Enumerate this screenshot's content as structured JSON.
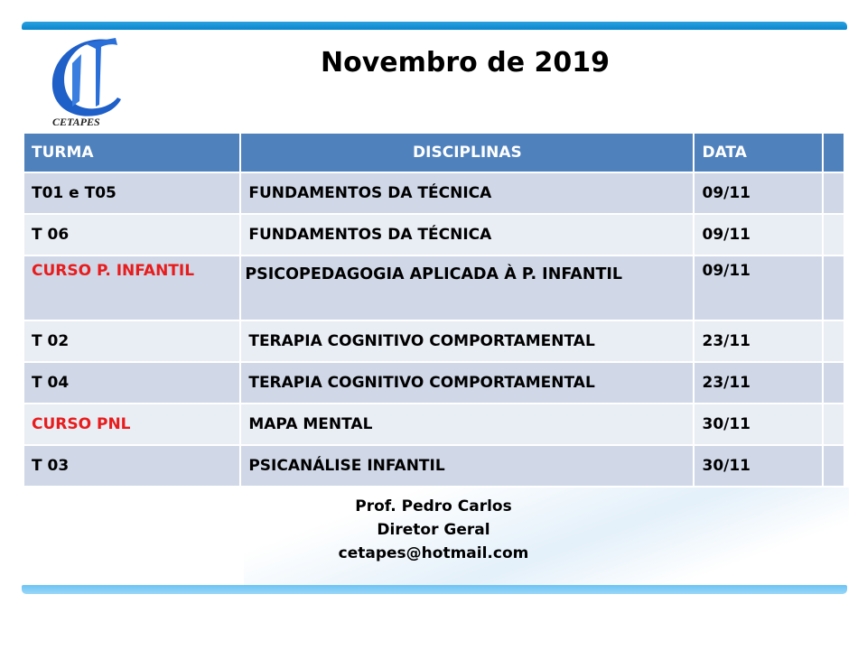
{
  "logo": {
    "text": "CETAPES",
    "color": "#1f5fc8"
  },
  "title": "Novembro de 2019",
  "table": {
    "headers": [
      "TURMA",
      "DISCIPLINAS",
      "DATA",
      ""
    ],
    "rows": [
      {
        "turma": "T01 e T05",
        "disciplina": "FUNDAMENTOS DA TÉCNICA",
        "data": "09/11",
        "highlight": false
      },
      {
        "turma": "T 06",
        "disciplina": "FUNDAMENTOS DA TÉCNICA",
        "data": "09/11",
        "highlight": false
      },
      {
        "turma": "CURSO P. INFANTIL",
        "disciplina": "PSICOPEDAGOGIA APLICADA À P. INFANTIL",
        "data": "09/11",
        "highlight": true
      },
      {
        "turma": "T 02",
        "disciplina": "TERAPIA COGNITIVO COMPORTAMENTAL",
        "data": "23/11",
        "highlight": false
      },
      {
        "turma": "T 04",
        "disciplina": "TERAPIA COGNITIVO COMPORTAMENTAL",
        "data": "23/11",
        "highlight": false
      },
      {
        "turma": "CURSO PNL",
        "disciplina": "MAPA MENTAL",
        "data": "30/11",
        "highlight": true
      },
      {
        "turma": "T 03",
        "disciplina": "PSICANÁLISE INFANTIL",
        "data": "30/11",
        "highlight": false
      }
    ]
  },
  "footer": {
    "name": "Prof. Pedro Carlos",
    "role": "Diretor Geral",
    "email": "cetapes@hotmail.com"
  },
  "colors": {
    "header": "#4f81bd",
    "highlight": "#e81c1c",
    "band": "#0a86cc"
  }
}
